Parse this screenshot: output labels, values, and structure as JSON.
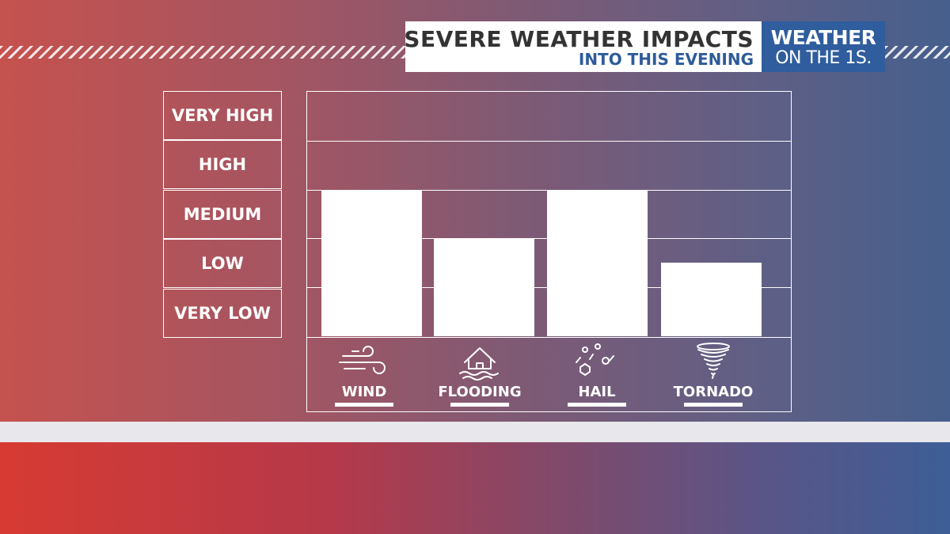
{
  "header": {
    "title": "SEVERE WEATHER IMPACTS",
    "subtitle": "INTO THIS EVENING"
  },
  "logo": {
    "line1": "WEATHER",
    "line2": "ON THE 1S."
  },
  "colors": {
    "subtitle": "#2e5b9a",
    "logo_bg": "#2f5d9d",
    "bars": "#ffffff"
  },
  "chart_data": {
    "type": "bar",
    "title": "SEVERE WEATHER IMPACTS",
    "subtitle": "INTO THIS EVENING",
    "y_levels": [
      "VERY HIGH",
      "HIGH",
      "MEDIUM",
      "LOW",
      "VERY LOW"
    ],
    "ylim": [
      0,
      5
    ],
    "categories": [
      "WIND",
      "FLOODING",
      "HAIL",
      "TORNADO"
    ],
    "icons": [
      "wind-icon",
      "flood-house-icon",
      "hail-icon",
      "tornado-icon"
    ],
    "values": [
      3.0,
      2.0,
      3.0,
      1.5
    ],
    "grid": true
  }
}
